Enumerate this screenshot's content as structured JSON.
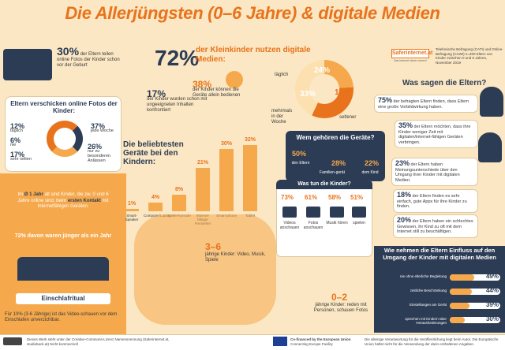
{
  "title": "Die Allerjüngsten (0–6 Jahre) & digitale Medien",
  "photos_online": {
    "value": "30%",
    "text": "der Eltern teilen online Fotos der Kinder schon vor der Geburt"
  },
  "share": {
    "title": "Eltern verschicken online Fotos der Kinder:",
    "items": [
      {
        "value": "12%",
        "label": "täglich"
      },
      {
        "value": "37%",
        "label": "jede Woche"
      },
      {
        "value": "6%",
        "label": "nie"
      },
      {
        "value": "17%",
        "label": "sehr selten"
      },
      {
        "value": "26%",
        "label": "nur zu besonderen Anlässen"
      }
    ]
  },
  "contact": {
    "text_1": "Im ",
    "text_bold": "Ø 1 Jahr",
    "text_2": " alt sind Kinder, die zw. 0 und 6 Jahre online sind, beim ",
    "text_bold2": "ersten Kontakt",
    "text_3": " mit Internetfähigen Geräten.",
    "younger": "72% davon waren jünger als ein Jahr"
  },
  "ritual": {
    "label": "Einschlafritual",
    "value": "10%",
    "text": "Für 10% (3-6 Jährige) ist das Video-schauen vor dem Einschlafen unverzichtbar."
  },
  "headline": {
    "value": "72%",
    "text": "der Kleinkinder nutzen digitale Medien:"
  },
  "stat38": {
    "value": "38%",
    "text": "der Kinder können die Geräte allein bedienen"
  },
  "stat17": {
    "value": "17%",
    "text": "der Kinder wurden schon mit ungeeigneten Inhalten konfrontiert"
  },
  "usage": {
    "segments": [
      {
        "label": "täglich",
        "value": "24%"
      },
      {
        "label": "mehrmals in der Woche",
        "value": "33%"
      },
      {
        "label": "seltener",
        "value": "15%"
      }
    ]
  },
  "brand": {
    "logo": "Saferinternet.at",
    "tagline": "Das Internet sicher nutzen!"
  },
  "source": "Telefonische Befragung (CATI) und Online-Befragung (CAWI) n=400 Eltern von Kinder zwischen 0 und 6 Jahren, November 2019",
  "chart_data": {
    "type": "bar",
    "title": "Die beliebtesten Geräte bei den Kindern:",
    "categories": [
      "Smart-Speaker",
      "Computer/Laptop",
      "Spiele-konsole",
      "Internet-fähiger Fernseher",
      "Smart-phone",
      "Tablet"
    ],
    "values": [
      1,
      4,
      8,
      21,
      30,
      32
    ],
    "value_labels": [
      "1%",
      "4%",
      "8%",
      "21%",
      "30%",
      "32%"
    ],
    "ylim": [
      0,
      35
    ]
  },
  "owners": {
    "title": "Wem gehören die Geräte?",
    "items": [
      {
        "value": "50%",
        "label": "den Eltern"
      },
      {
        "value": "28%",
        "label": "Familien-gerät"
      },
      {
        "value": "22%",
        "label": "dem Kind"
      }
    ]
  },
  "activities": {
    "title": "Was tun die Kinder?",
    "items": [
      {
        "value": "73%",
        "label": "Videos anschauen"
      },
      {
        "value": "61%",
        "label": "Fotos anschauen"
      },
      {
        "value": "58%",
        "label": "Musik hören"
      },
      {
        "value": "51%",
        "label": "spielen"
      }
    ]
  },
  "age36": {
    "label": "3–6",
    "text": "jährige Kinder: Video, Musik, Spiele"
  },
  "age02": {
    "label": "0–2",
    "text": "jährige Kinder: reden mit Personen, schauen Fotos"
  },
  "parents": {
    "title": "Was sagen die Eltern?",
    "items": [
      {
        "value": "75%",
        "text": "der befragten Eltern finden, dass Eltern eine große Vorbildwirkung haben."
      },
      {
        "value": "35%",
        "text": "der Eltern möchten, dass ihre Kinder weniger Zeit mit digitalen/internet-fähigen Geräten verbringen."
      },
      {
        "value": "23%",
        "text": "der Eltern haben Meinungsunterschiede über den Umgang ihrer Kinder mit digitalen Medien."
      },
      {
        "value": "18%",
        "text": "der Eltern finden es sehr einfach, gute Apps für ihre Kinder zu finden."
      },
      {
        "value": "20%",
        "text": "der Eltern haben ein schlechtes Gewissen, ihr Kind zu oft mit dem Internet still zu beschäftigen."
      }
    ]
  },
  "influence": {
    "title": "Wie nehmen die Eltern Einfluss auf den Umgang der Kinder mit digitalen Medien",
    "rows": [
      {
        "label": "nie ohne elterliche Begleitung",
        "value": "49%",
        "pct": 49
      },
      {
        "label": "zeitliche Beschränkung",
        "value": "44%",
        "pct": 44
      },
      {
        "label": "Einstellungen am Gerät",
        "value": "39%",
        "pct": 39
      },
      {
        "label": "sprechen mit Kindern über Herausforderungen",
        "value": "30%",
        "pct": 30
      }
    ]
  },
  "footer": {
    "license": "Dieses Werk steht unter der Creative-Commons-Lizenz Namensnennung (Saferinternet.at, studioback.at) Nicht kommerziell",
    "eu": "Co-financed by the European Union",
    "eu_sub": "Connecting Europe Facility",
    "disclaimer": "Die alleinige Verantwortung für die Veröffentlichung liegt beim Autor. Die Europäische Union haftet nicht für die Verwendung der darin enthaltenen Angaben."
  }
}
